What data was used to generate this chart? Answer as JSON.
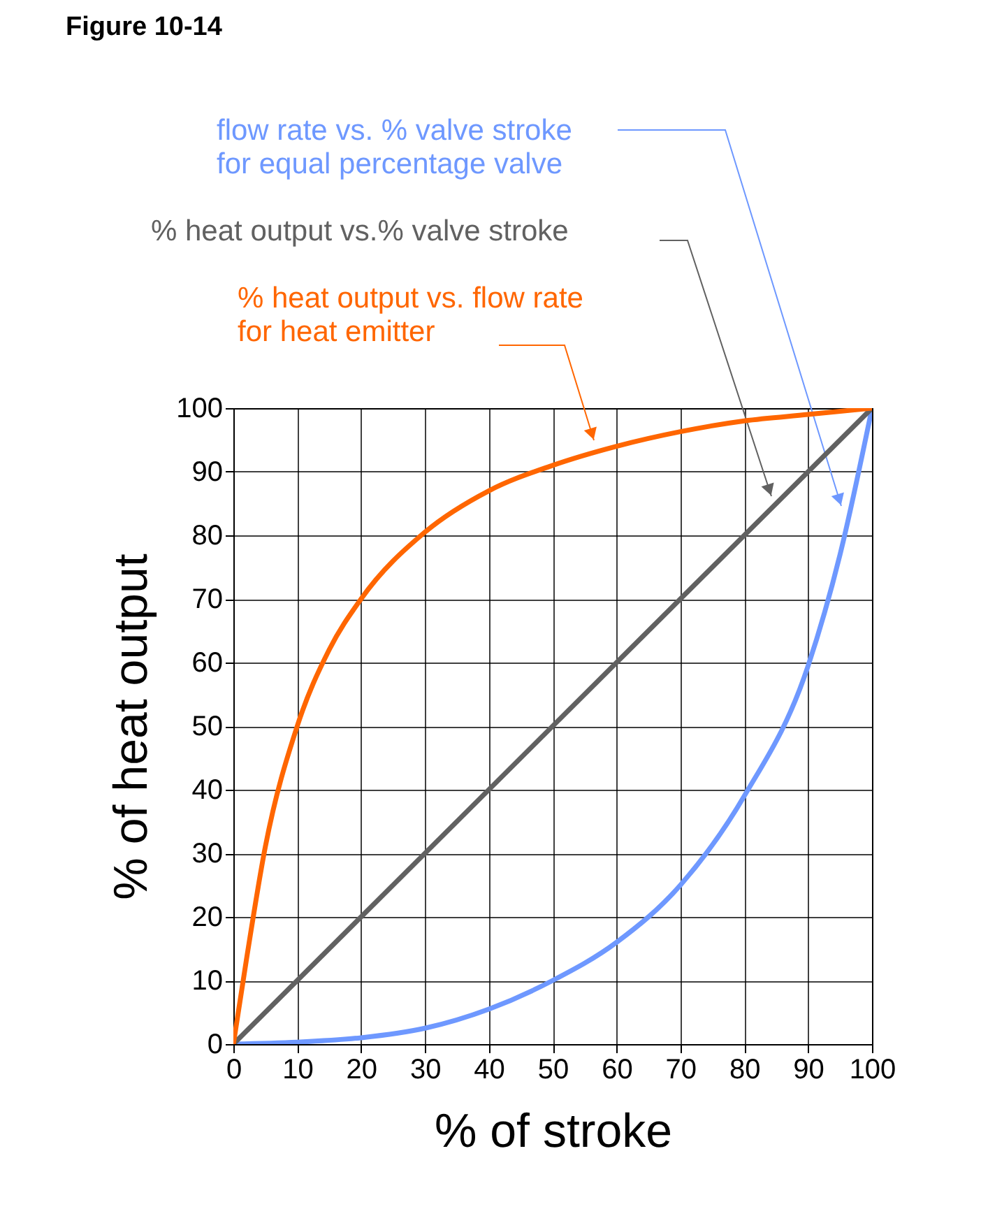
{
  "chart_data": {
    "type": "line",
    "title": "Figure 10-14",
    "xlabel": "% of stroke",
    "ylabel": "% of heat output",
    "xlim": [
      0,
      100
    ],
    "ylim": [
      0,
      100
    ],
    "xticks": [
      0,
      10,
      20,
      30,
      40,
      50,
      60,
      70,
      80,
      90,
      100
    ],
    "yticks": [
      0,
      10,
      20,
      30,
      40,
      50,
      60,
      70,
      80,
      90,
      100
    ],
    "grid": true,
    "marker": "none",
    "line_style": "solid",
    "series": [
      {
        "name": "flow rate vs. % valve stroke\nfor  equal percentage valve",
        "color": "#6e98ff",
        "x": [
          0,
          10,
          20,
          30,
          40,
          50,
          60,
          70,
          80,
          90,
          95,
          100
        ],
        "values": [
          0,
          0.3,
          1,
          2.5,
          5.5,
          10,
          16,
          25,
          39,
          59.5,
          77,
          100
        ]
      },
      {
        "name": "% heat output vs.% valve stroke",
        "color": "#616161",
        "x": [
          0,
          100
        ],
        "values": [
          0,
          100
        ]
      },
      {
        "name": "% heat output vs. flow rate\nfor  heat emitter",
        "color": "#ff6600",
        "x": [
          0,
          2,
          5,
          10,
          15,
          20,
          30,
          40,
          50,
          60,
          70,
          80,
          90,
          100
        ],
        "values": [
          0,
          13,
          31,
          50,
          62,
          70,
          80.5,
          87,
          91,
          94,
          96.3,
          98,
          99,
          100
        ]
      }
    ]
  }
}
